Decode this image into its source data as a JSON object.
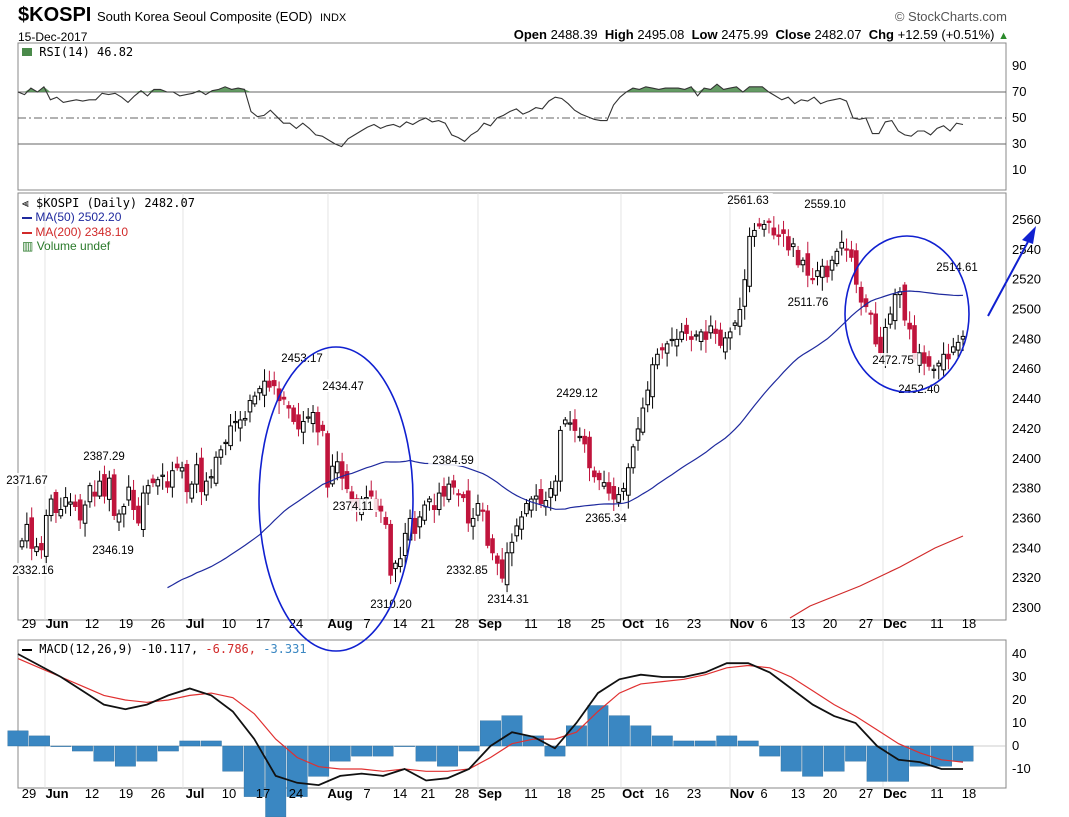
{
  "header": {
    "symbol": "$KOSPI",
    "name": "South Korea Seoul Composite (EOD)",
    "exchange": "INDX",
    "date": "15-Dec-2017",
    "brand": "© StockCharts.com",
    "open_label": "Open",
    "open": "2488.39",
    "high_label": "High",
    "high": "2495.08",
    "low_label": "Low",
    "low": "2475.99",
    "close_label": "Close",
    "close": "2482.07",
    "chg_label": "Chg",
    "chg": "+12.59 (+0.51%)"
  },
  "legend": {
    "rsi": "RSI(14) 46.82",
    "price": "$KOSPI (Daily) 2482.07",
    "ma50": "MA(50) 2502.20",
    "ma200": "MA(200) 2348.10",
    "volume": "Volume undef",
    "macd_main": "MACD(12,26,9) -10.117,",
    "macd_signal": "-6.786,",
    "macd_hist": "-3.331"
  },
  "colors": {
    "up": "#000000",
    "down": "#c0143c",
    "ma50": "#1f2a9e",
    "ma200": "#d12a2a",
    "rsi_fill": "#4a8a4a",
    "hist": "#3a87c2",
    "annot": "#1020d0"
  },
  "chart_data": [
    {
      "type": "line",
      "title": "RSI(14)",
      "yticks": [
        90,
        70,
        50,
        30,
        10
      ],
      "ylim": [
        0,
        100
      ],
      "series": [
        {
          "name": "RSI(14)",
          "values": [
            70,
            68,
            73,
            70,
            74,
            64,
            66,
            62,
            63,
            64,
            63,
            64,
            64,
            69,
            68,
            69,
            66,
            62,
            67,
            71,
            67,
            72,
            72,
            70,
            70,
            67,
            68,
            69,
            71,
            68,
            71,
            72,
            74,
            72,
            73,
            72,
            55,
            51,
            52,
            56,
            51,
            46,
            46,
            42,
            46,
            42,
            37,
            36,
            33,
            30,
            28,
            34,
            37,
            40,
            43,
            45,
            42,
            44,
            45,
            43,
            47,
            45,
            48,
            50,
            47,
            48,
            46,
            37,
            35,
            32,
            37,
            40,
            46,
            44,
            50,
            52,
            55,
            57,
            53,
            55,
            58,
            57,
            63,
            66,
            65,
            61,
            56,
            53,
            51,
            49,
            48,
            48,
            60,
            66,
            70,
            73,
            72,
            74,
            73,
            72,
            73,
            73,
            73,
            72,
            74,
            67,
            73,
            72,
            76,
            72,
            73,
            74,
            70,
            74,
            74,
            74,
            70,
            67,
            64,
            66,
            61,
            64,
            63,
            66,
            61,
            63,
            64,
            65,
            63,
            50,
            49,
            50,
            38,
            38,
            47,
            48,
            40,
            37,
            36,
            40,
            40,
            37,
            42,
            44,
            40,
            46,
            45
          ]
        }
      ]
    },
    {
      "type": "candlestick",
      "title": "$KOSPI (Daily) 2482.07",
      "x_labels": [
        "29",
        "Jun",
        "12",
        "19",
        "26",
        "Jul",
        "10",
        "17",
        "24",
        "Aug",
        "7",
        "14",
        "21",
        "28",
        "Sep",
        "11",
        "18",
        "25",
        "Oct",
        "16",
        "23",
        "Nov",
        "6",
        "13",
        "20",
        "27",
        "Dec",
        "11",
        "18"
      ],
      "yticks": [
        2560,
        2540,
        2520,
        2500,
        2480,
        2460,
        2440,
        2420,
        2400,
        2380,
        2360,
        2340,
        2320,
        2300
      ],
      "ylim": [
        2290,
        2570
      ],
      "closes": [
        2345,
        2356,
        2340,
        2341,
        2339,
        2362,
        2373,
        2364,
        2366,
        2374,
        2371,
        2368,
        2359,
        2369,
        2382,
        2375,
        2385,
        2375,
        2387,
        2362,
        2363,
        2368,
        2381,
        2366,
        2357,
        2377,
        2382,
        2384,
        2386,
        2389,
        2381,
        2392,
        2394,
        2394,
        2378,
        2383,
        2396,
        2378,
        2385,
        2388,
        2401,
        2406,
        2411,
        2422,
        2425,
        2426,
        2427,
        2439,
        2442,
        2447,
        2452,
        2448,
        2449,
        2439,
        2440,
        2434,
        2425,
        2420,
        2425,
        2428,
        2431,
        2418,
        2419,
        2381,
        2395,
        2398,
        2387,
        2380,
        2371,
        2367,
        2373,
        2374,
        2375,
        2366,
        2365,
        2356,
        2322,
        2330,
        2333,
        2350,
        2360,
        2350,
        2361,
        2369,
        2373,
        2366,
        2377,
        2375,
        2383,
        2381,
        2376,
        2374,
        2357,
        2360,
        2370,
        2365,
        2342,
        2337,
        2330,
        2320,
        2337,
        2344,
        2355,
        2361,
        2370,
        2373,
        2375,
        2370,
        2372,
        2380,
        2385,
        2419,
        2426,
        2424,
        2419,
        2415,
        2410,
        2394,
        2388,
        2386,
        2384,
        2377,
        2373,
        2376,
        2380,
        2394,
        2408,
        2420,
        2434,
        2446,
        2463,
        2470,
        2473,
        2477,
        2480,
        2480,
        2485,
        2484,
        2480,
        2483,
        2485,
        2480,
        2489,
        2484,
        2476,
        2481,
        2485,
        2491,
        2500,
        2520,
        2549,
        2553,
        2556,
        2557,
        2559,
        2550,
        2549,
        2551,
        2540,
        2544,
        2530,
        2533,
        2523,
        2520,
        2526,
        2529,
        2522,
        2533,
        2539,
        2545,
        2540,
        2535,
        2517,
        2505,
        2502,
        2497,
        2477,
        2471,
        2488,
        2497,
        2510,
        2512,
        2493,
        2487,
        2467,
        2471,
        2464,
        2462,
        2460,
        2464,
        2470,
        2467,
        2475,
        2478,
        2482
      ]
    },
    {
      "type": "line",
      "title": "MACD(12,26,9)",
      "yticks": [
        40,
        30,
        20,
        10,
        0,
        -10
      ],
      "ylim": [
        -15,
        45
      ],
      "series": [
        {
          "name": "MACD(12,26,9)",
          "values": [
            40,
            35,
            30,
            24,
            18,
            16,
            18,
            22,
            25,
            22,
            15,
            3,
            -13,
            -16,
            -17,
            -13,
            -12,
            -13,
            -10,
            -15,
            -14,
            -10,
            0,
            6,
            4,
            -1,
            10,
            23,
            29,
            31,
            30,
            30,
            32,
            36,
            36,
            32,
            25,
            18,
            13,
            10,
            0,
            -6,
            -7,
            -10,
            -10
          ]
        },
        {
          "name": "Signal",
          "values": [
            38,
            34,
            30,
            26,
            22,
            20,
            19,
            20,
            22,
            23,
            21,
            14,
            3,
            -5,
            -9,
            -10,
            -10,
            -11,
            -10,
            -11,
            -11,
            -10,
            -5,
            1,
            3,
            3,
            6,
            15,
            23,
            27,
            28,
            29,
            31,
            34,
            35,
            34,
            30,
            24,
            18,
            13,
            7,
            1,
            -3,
            -6,
            -7
          ]
        },
        {
          "name": "Histogram",
          "values": [
            3,
            2,
            0,
            -1,
            -3,
            -4,
            -3,
            -1,
            1,
            1,
            -5,
            -10,
            -14,
            -10,
            -6,
            -3,
            -2,
            -2,
            0,
            -3,
            -4,
            -1,
            5,
            6,
            2,
            -2,
            4,
            8,
            6,
            4,
            2,
            1,
            1,
            2,
            1,
            -2,
            -5,
            -6,
            -5,
            -3,
            -7,
            -7,
            -4,
            -4,
            -3
          ]
        }
      ]
    }
  ],
  "annotations": {
    "price_labels": [
      "2371.67",
      "2387.29",
      "2346.19",
      "2332.16",
      "2453.17",
      "2434.47",
      "2374.11",
      "2310.20",
      "2384.59",
      "2332.85",
      "2314.31",
      "2429.12",
      "2365.34",
      "2561.63",
      "2559.10",
      "2511.76",
      "2514.61",
      "2472.75",
      "2452.40"
    ]
  }
}
